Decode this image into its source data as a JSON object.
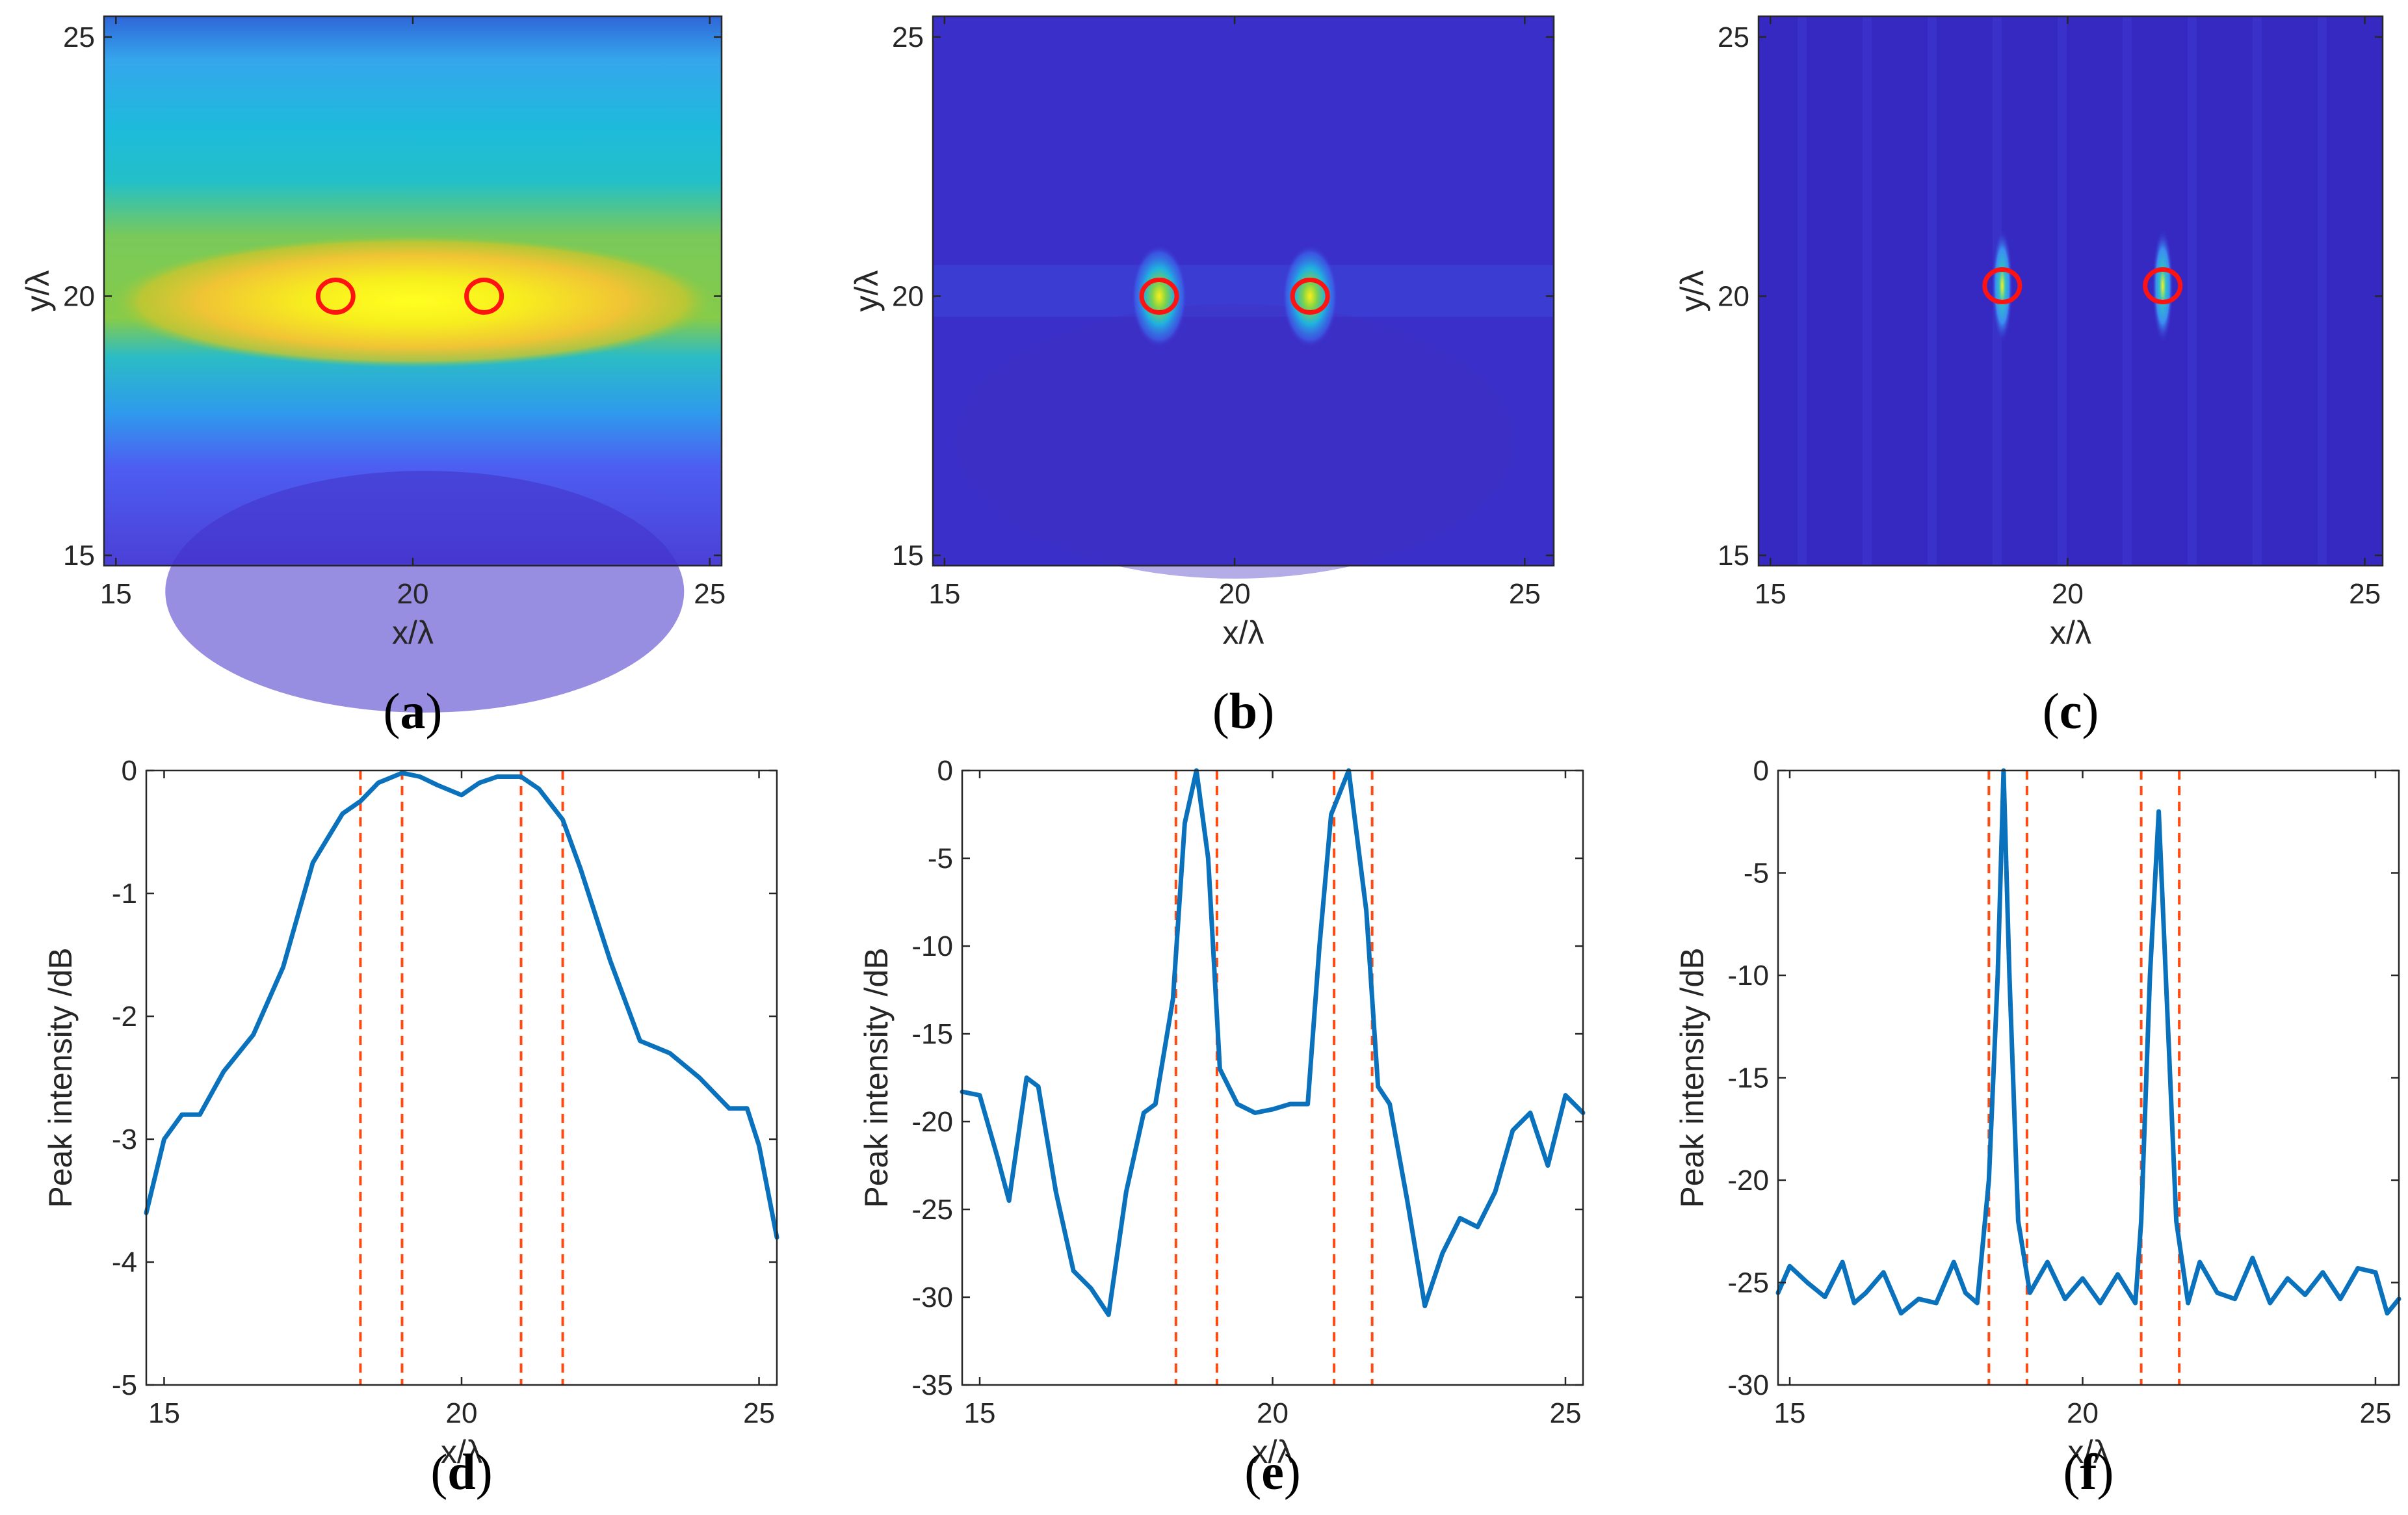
{
  "chart_data": [
    {
      "id": "a",
      "type": "heatmap",
      "caption_letter": "a",
      "xlabel": "x/λ",
      "ylabel": "y/λ",
      "xlim": [
        14.8,
        25.2
      ],
      "ylim": [
        14.8,
        25.4
      ],
      "xticks": [
        "15",
        "20",
        "25"
      ],
      "yticks": [
        "15",
        "20",
        "25"
      ],
      "targets": [
        {
          "x": 18.7,
          "y": 20.0
        },
        {
          "x": 21.2,
          "y": 20.0
        }
      ],
      "hot_spots": [
        {
          "x": 20.0,
          "y": 19.9,
          "sx": 3.0,
          "sy": 0.75,
          "amp": 1.0
        }
      ],
      "background_level": 0.35,
      "style": "broad"
    },
    {
      "id": "b",
      "type": "heatmap",
      "caption_letter": "b",
      "xlabel": "x/λ",
      "ylabel": "y/λ",
      "xlim": [
        14.8,
        25.5
      ],
      "ylim": [
        14.8,
        25.4
      ],
      "xticks": [
        "15",
        "20",
        "25"
      ],
      "yticks": [
        "15",
        "20",
        "25"
      ],
      "targets": [
        {
          "x": 18.7,
          "y": 20.0
        },
        {
          "x": 21.3,
          "y": 20.0
        }
      ],
      "hot_spots": [
        {
          "x": 18.7,
          "y": 20.0,
          "sx": 0.22,
          "sy": 0.45,
          "amp": 1.0
        },
        {
          "x": 21.3,
          "y": 20.0,
          "sx": 0.22,
          "sy": 0.45,
          "amp": 1.0
        }
      ],
      "background_level": 0.08,
      "style": "focused"
    },
    {
      "id": "c",
      "type": "heatmap",
      "caption_letter": "c",
      "xlabel": "x/λ",
      "ylabel": "y/λ",
      "xlim": [
        14.8,
        25.3
      ],
      "ylim": [
        14.8,
        25.4
      ],
      "xticks": [
        "15",
        "20",
        "25"
      ],
      "yticks": [
        "15",
        "20",
        "25"
      ],
      "targets": [
        {
          "x": 18.9,
          "y": 20.2
        },
        {
          "x": 21.6,
          "y": 20.2
        }
      ],
      "hot_spots": [
        {
          "x": 18.9,
          "y": 20.2,
          "sx": 0.08,
          "sy": 0.5,
          "amp": 1.0
        },
        {
          "x": 21.6,
          "y": 20.2,
          "sx": 0.08,
          "sy": 0.5,
          "amp": 0.9
        }
      ],
      "background_level": 0.05,
      "style": "sharp"
    },
    {
      "id": "d",
      "type": "line",
      "caption_letter": "d",
      "xlabel": "x/λ",
      "ylabel": "Peak intensity /dB",
      "xlim": [
        14.7,
        25.3
      ],
      "ylim": [
        -5,
        0
      ],
      "xticks": [
        "15",
        "20",
        "25"
      ],
      "yticks": [
        "0",
        "-1",
        "-2",
        "-3",
        "-4",
        "-5"
      ],
      "dashed_lines": [
        18.3,
        19.0,
        21.0,
        21.7
      ],
      "series": [
        {
          "name": "Peak intensity",
          "x": [
            14.7,
            15.0,
            15.3,
            15.6,
            16.0,
            16.5,
            17.0,
            17.5,
            18.0,
            18.3,
            18.6,
            19.0,
            19.3,
            19.6,
            20.0,
            20.3,
            20.6,
            21.0,
            21.3,
            21.7,
            22.0,
            22.5,
            23.0,
            23.5,
            24.0,
            24.5,
            24.8,
            25.0,
            25.3
          ],
          "y": [
            -3.6,
            -3.0,
            -2.8,
            -2.8,
            -2.45,
            -2.15,
            -1.6,
            -0.75,
            -0.35,
            -0.25,
            -0.1,
            -0.02,
            -0.05,
            -0.12,
            -0.2,
            -0.1,
            -0.05,
            -0.05,
            -0.15,
            -0.4,
            -0.8,
            -1.55,
            -2.2,
            -2.3,
            -2.5,
            -2.75,
            -2.75,
            -3.05,
            -3.8
          ]
        }
      ]
    },
    {
      "id": "e",
      "type": "line",
      "caption_letter": "e",
      "xlabel": "x/λ",
      "ylabel": "Peak intensity /dB",
      "xlim": [
        14.7,
        25.3
      ],
      "ylim": [
        -35,
        0
      ],
      "xticks": [
        "15",
        "20",
        "25"
      ],
      "yticks": [
        "0",
        "-5",
        "-10",
        "-15",
        "-20",
        "-25",
        "-30",
        "-35"
      ],
      "dashed_lines": [
        18.35,
        19.05,
        21.05,
        21.7
      ],
      "series": [
        {
          "name": "Peak intensity",
          "x": [
            14.7,
            15.0,
            15.3,
            15.5,
            15.8,
            16.0,
            16.3,
            16.6,
            16.9,
            17.2,
            17.5,
            17.8,
            18.0,
            18.3,
            18.5,
            18.7,
            18.9,
            19.1,
            19.4,
            19.7,
            20.0,
            20.3,
            20.6,
            20.8,
            21.0,
            21.3,
            21.6,
            21.8,
            22.0,
            22.3,
            22.6,
            22.9,
            23.2,
            23.5,
            23.8,
            24.1,
            24.4,
            24.7,
            25.0,
            25.3
          ],
          "y": [
            -18.3,
            -18.5,
            -22,
            -24.5,
            -17.5,
            -18,
            -24,
            -28.5,
            -29.5,
            -31,
            -24,
            -19.5,
            -19,
            -13,
            -3,
            0,
            -5,
            -17,
            -19,
            -19.5,
            -19.3,
            -19,
            -19,
            -10,
            -2.5,
            0,
            -8,
            -18,
            -19,
            -24.5,
            -30.5,
            -27.5,
            -25.5,
            -26,
            -24,
            -20.5,
            -19.5,
            -22.5,
            -18.5,
            -19.5
          ]
        }
      ]
    },
    {
      "id": "f",
      "type": "line",
      "caption_letter": "f",
      "xlabel": "x/λ",
      "ylabel": "Peak intensity /dB",
      "xlim": [
        14.8,
        25.4
      ],
      "ylim": [
        -30,
        0
      ],
      "xticks": [
        "15",
        "20",
        "25"
      ],
      "yticks": [
        "0",
        "-5",
        "-10",
        "-15",
        "-20",
        "-25",
        "-30"
      ],
      "dashed_lines": [
        18.4,
        19.05,
        21.0,
        21.65
      ],
      "series": [
        {
          "name": "Peak intensity",
          "x": [
            14.8,
            15.0,
            15.3,
            15.6,
            15.9,
            16.1,
            16.3,
            16.6,
            16.9,
            17.2,
            17.5,
            17.8,
            18.0,
            18.2,
            18.4,
            18.55,
            18.65,
            18.75,
            18.9,
            19.1,
            19.4,
            19.7,
            20.0,
            20.3,
            20.6,
            20.9,
            21.0,
            21.15,
            21.3,
            21.45,
            21.6,
            21.8,
            22.0,
            22.3,
            22.6,
            22.9,
            23.2,
            23.5,
            23.8,
            24.1,
            24.4,
            24.7,
            25.0,
            25.2,
            25.4
          ],
          "y": [
            -25.5,
            -24.2,
            -25,
            -25.7,
            -24,
            -26,
            -25.5,
            -24.5,
            -26.5,
            -25.8,
            -26,
            -24,
            -25.5,
            -26,
            -20,
            -10,
            0,
            -10,
            -22,
            -25.5,
            -24,
            -25.8,
            -24.8,
            -26,
            -24.6,
            -26,
            -22,
            -10,
            -2,
            -12,
            -22,
            -26,
            -24,
            -25.5,
            -25.8,
            -23.8,
            -26,
            -24.8,
            -25.6,
            -24.5,
            -25.8,
            -24.3,
            -24.5,
            -26.5,
            -25.8
          ]
        }
      ]
    }
  ]
}
